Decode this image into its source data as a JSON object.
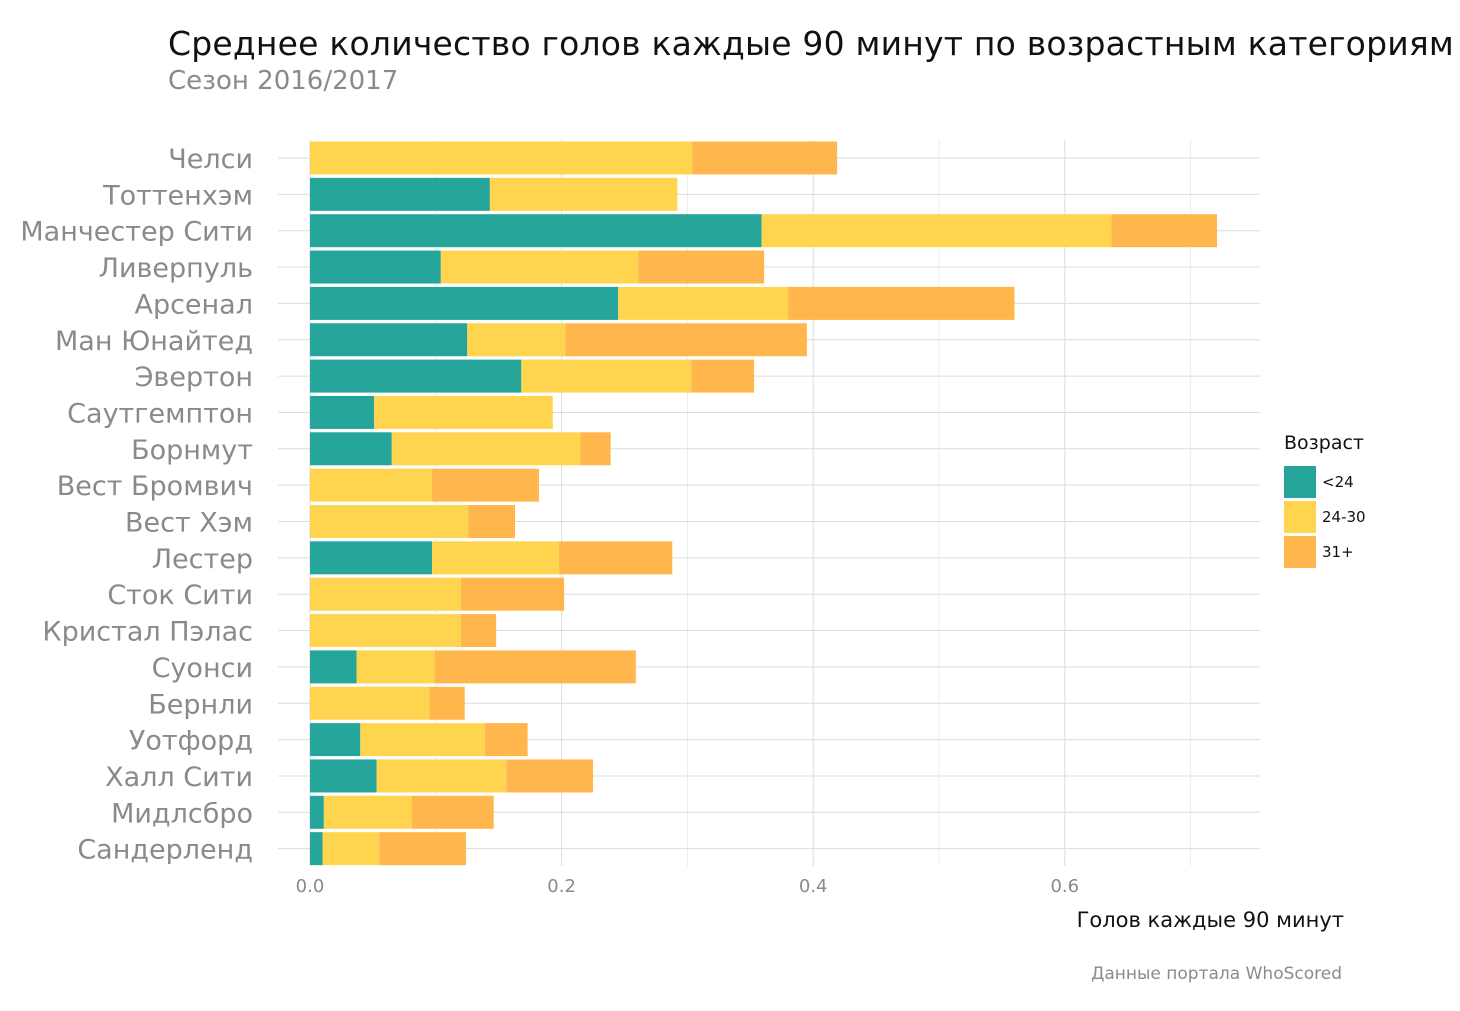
{
  "chart_data": {
    "type": "bar",
    "orientation": "horizontal",
    "stacked": true,
    "title": "Среднее количество голов каждые 90 минут по возрастным категориям",
    "subtitle": "Сезон 2016/2017",
    "xlabel": "Голов каждые 90 минут",
    "caption": "Данные портала WhoScored",
    "categories": [
      "Челси",
      "Тоттенхэм",
      "Манчестер Сити",
      "Ливерпуль",
      "Арсенал",
      "Ман Юнайтед",
      "Эвертон",
      "Саутгемптон",
      "Борнмут",
      "Вест Бромвич",
      "Вест Хэм",
      "Лестер",
      "Сток Сити",
      "Кристал Пэлас",
      "Суонси",
      "Бернли",
      "Уотфорд",
      "Халл Сити",
      "Мидлсбро",
      "Сандерленд"
    ],
    "series": [
      {
        "name": "<24",
        "color": "#26A69A",
        "values": [
          0.0,
          0.143,
          0.359,
          0.104,
          0.245,
          0.125,
          0.168,
          0.051,
          0.065,
          0.0,
          0.0,
          0.097,
          0.0,
          0.0,
          0.037,
          0.0,
          0.04,
          0.053,
          0.011,
          0.01
        ]
      },
      {
        "name": "24-30",
        "color": "#FFD54F",
        "values": [
          0.304,
          0.149,
          0.278,
          0.157,
          0.135,
          0.078,
          0.135,
          0.142,
          0.15,
          0.097,
          0.126,
          0.101,
          0.12,
          0.12,
          0.062,
          0.095,
          0.099,
          0.103,
          0.07,
          0.045
        ]
      },
      {
        "name": "31+",
        "color": "#FFB74D",
        "values": [
          0.115,
          0.0,
          0.084,
          0.1,
          0.18,
          0.192,
          0.05,
          0.0,
          0.024,
          0.085,
          0.037,
          0.09,
          0.082,
          0.028,
          0.16,
          0.028,
          0.034,
          0.069,
          0.065,
          0.069
        ]
      }
    ],
    "xlim": [
      0,
      0.75
    ],
    "xticks": [
      "0.0",
      "0.2",
      "0.4",
      "0.6"
    ],
    "xtick_values": [
      0,
      0.2,
      0.4,
      0.6
    ],
    "grid": true,
    "legend": {
      "title": "Возраст",
      "placement": "right"
    }
  }
}
